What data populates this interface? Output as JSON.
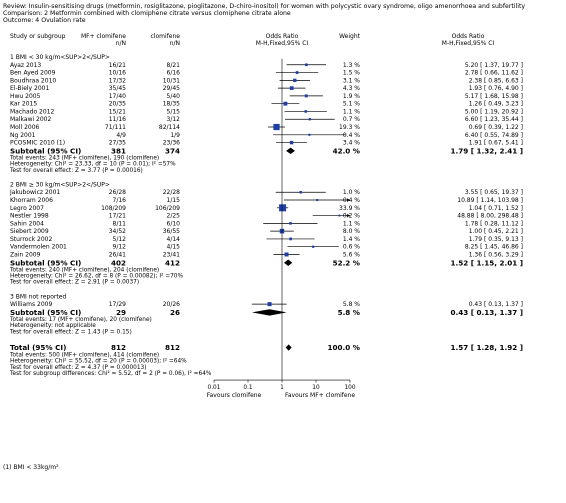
{
  "header": {
    "review": "Review:   Insulin-sensitising drugs (metformin, rosiglitazone, pioglitazone, D-chiro-inositol) for women with polycystic ovary syndrome, oligo amenorrhoea and subfertility",
    "comparison": "Comparison:   2 Metformin combined with clomiphene citrate versus clomiphene citrate alone",
    "outcome": "Outcome:   4 Ovulation rate"
  },
  "columns": {
    "study": "Study or subgroup",
    "exp": "MF+ clomifene",
    "ctrl": "clomifene",
    "n_n": "n/N",
    "or": "Odds Ratio",
    "or_method": "M-H,Fixed,95% CI",
    "weight": "Weight",
    "or2": "Odds Ratio",
    "or2_method": "M-H,Fixed,95% CI"
  },
  "chart_data": {
    "type": "forest",
    "scale": "log",
    "axis_ticks": [
      0.01,
      0.1,
      1,
      10,
      100
    ],
    "axis_tick_labels": [
      "0.01",
      "0.1",
      "1",
      "10",
      "100"
    ],
    "favours_left": "Favours clomifene",
    "favours_right": "Favours MF+ clomifene",
    "subgroups": [
      {
        "title": "1 BMI < 30 kg/m<SUP>2</SUP>",
        "studies": [
          {
            "name": "Ayaz 2013",
            "exp": "16/21",
            "ctrl": "8/21",
            "weight": "1.3 %",
            "ci_text": "5.20 [ 1.37, 19.77 ]",
            "or": 5.2,
            "lo": 1.37,
            "hi": 19.77
          },
          {
            "name": "Ben Ayed 2009",
            "exp": "10/16",
            "ctrl": "6/16",
            "weight": "1.5 %",
            "ci_text": "2.78 [ 0.66, 11.62 ]",
            "or": 2.78,
            "lo": 0.66,
            "hi": 11.62
          },
          {
            "name": "Boudhraa 2010",
            "exp": "17/32",
            "ctrl": "10/31",
            "weight": "3.1 %",
            "ci_text": "2.38 [ 0.85, 6.63 ]",
            "or": 2.38,
            "lo": 0.85,
            "hi": 6.63
          },
          {
            "name": "El-Biely 2001",
            "exp": "35/45",
            "ctrl": "29/45",
            "weight": "4.3 %",
            "ci_text": "1.93 [ 0.76, 4.90 ]",
            "or": 1.93,
            "lo": 0.76,
            "hi": 4.9
          },
          {
            "name": "Hwu 2005",
            "exp": "17/40",
            "ctrl": "5/40",
            "weight": "1.9 %",
            "ci_text": "5.17 [ 1.68, 15.98 ]",
            "or": 5.17,
            "lo": 1.68,
            "hi": 15.98
          },
          {
            "name": "Kar 2015",
            "exp": "20/35",
            "ctrl": "18/35",
            "weight": "5.1 %",
            "ci_text": "1.26 [ 0.49, 3.23 ]",
            "or": 1.26,
            "lo": 0.49,
            "hi": 3.23
          },
          {
            "name": "Machado 2012",
            "exp": "15/21",
            "ctrl": "5/15",
            "weight": "1.1 %",
            "ci_text": "5.00 [ 1.19, 20.92 ]",
            "or": 5.0,
            "lo": 1.19,
            "hi": 20.92
          },
          {
            "name": "Malkawi 2002",
            "exp": "11/16",
            "ctrl": "3/12",
            "weight": "0.7 %",
            "ci_text": "6.60 [ 1.23, 35.44 ]",
            "or": 6.6,
            "lo": 1.23,
            "hi": 35.44
          },
          {
            "name": "Moll 2006",
            "exp": "71/111",
            "ctrl": "82/114",
            "weight": "19.3 %",
            "ci_text": "0.69 [ 0.39, 1.22 ]",
            "or": 0.69,
            "lo": 0.39,
            "hi": 1.22
          },
          {
            "name": "Ng 2001",
            "exp": "4/9",
            "ctrl": "1/9",
            "weight": "0.4 %",
            "ci_text": "6.40 [ 0.55, 74.89 ]",
            "or": 6.4,
            "lo": 0.55,
            "hi": 74.89
          },
          {
            "name": "PCOSMIC 2010 (1)",
            "exp": "27/35",
            "ctrl": "23/36",
            "weight": "3.4 %",
            "ci_text": "1.91 [ 0.67, 5.41 ]",
            "or": 1.91,
            "lo": 0.67,
            "hi": 5.41
          }
        ],
        "subtotal": {
          "label": "Subtotal (95% CI)",
          "exp": "381",
          "ctrl": "374",
          "weight": "42.0 %",
          "ci_text": "1.79 [ 1.32, 2.41 ]",
          "or": 1.79,
          "lo": 1.32,
          "hi": 2.41
        },
        "stats": [
          "Total events: 243 (MF+ clomifene), 190 (clomifene)",
          "Heterogeneity: Chi² = 23.33, df = 10 (P = 0.01); I² =57%",
          "Test for overall effect: Z = 3.77 (P = 0.00016)"
        ]
      },
      {
        "title": "2 BMI ≥ 30 kg/m<SUP>2</SUP>",
        "studies": [
          {
            "name": "Jakubowicz 2001",
            "exp": "26/28",
            "ctrl": "22/28",
            "weight": "1.0 %",
            "ci_text": "3.55 [ 0.65, 19.37 ]",
            "or": 3.55,
            "lo": 0.65,
            "hi": 19.37
          },
          {
            "name": "Khorram 2006",
            "exp": "7/16",
            "ctrl": "1/15",
            "weight": "0.4 %",
            "ci_text": "10.89 [ 1.14, 103.98 ]",
            "or": 10.89,
            "lo": 1.14,
            "hi": 103.98
          },
          {
            "name": "Legro 2007",
            "exp": "108/209",
            "ctrl": "106/209",
            "weight": "33.9 %",
            "ci_text": "1.04 [ 0.71, 1.52 ]",
            "or": 1.04,
            "lo": 0.71,
            "hi": 1.52
          },
          {
            "name": "Nestler 1998",
            "exp": "17/21",
            "ctrl": "2/25",
            "weight": "0.2 %",
            "ci_text": "48.88 [ 8.00, 298.48 ]",
            "or": 48.88,
            "lo": 8.0,
            "hi": 298.48
          },
          {
            "name": "Sahin 2004",
            "exp": "8/11",
            "ctrl": "6/10",
            "weight": "1.1 %",
            "ci_text": "1.78 [ 0.28, 11.12 ]",
            "or": 1.78,
            "lo": 0.28,
            "hi": 11.12
          },
          {
            "name": "Siebert 2009",
            "exp": "34/52",
            "ctrl": "36/55",
            "weight": "8.0 %",
            "ci_text": "1.00 [ 0.45, 2.21 ]",
            "or": 1.0,
            "lo": 0.45,
            "hi": 2.21
          },
          {
            "name": "Sturrock 2002",
            "exp": "5/12",
            "ctrl": "4/14",
            "weight": "1.4 %",
            "ci_text": "1.79 [ 0.35, 9.13 ]",
            "or": 1.79,
            "lo": 0.35,
            "hi": 9.13
          },
          {
            "name": "Vandermolen 2001",
            "exp": "9/12",
            "ctrl": "4/15",
            "weight": "0.6 %",
            "ci_text": "8.25 [ 1.45, 46.86 ]",
            "or": 8.25,
            "lo": 1.45,
            "hi": 46.86
          },
          {
            "name": "Zain 2009",
            "exp": "26/41",
            "ctrl": "23/41",
            "weight": "5.6 %",
            "ci_text": "1.36 [ 0.56, 3.29 ]",
            "or": 1.36,
            "lo": 0.56,
            "hi": 3.29
          }
        ],
        "subtotal": {
          "label": "Subtotal (95% CI)",
          "exp": "402",
          "ctrl": "412",
          "weight": "52.2 %",
          "ci_text": "1.52 [ 1.15, 2.01 ]",
          "or": 1.52,
          "lo": 1.15,
          "hi": 2.01
        },
        "stats": [
          "Total events: 240 (MF+ clomifene), 204 (clomifene)",
          "Heterogeneity: Chi² = 26.62, df = 8 (P = 0.00082); I² =70%",
          "Test for overall effect: Z = 2.91 (P = 0.0037)"
        ]
      },
      {
        "title": "3 BMI not reported",
        "studies": [
          {
            "name": "Williams 2009",
            "exp": "17/29",
            "ctrl": "20/26",
            "weight": "5.8 %",
            "ci_text": "0.43 [ 0.13, 1.37 ]",
            "or": 0.43,
            "lo": 0.13,
            "hi": 1.37
          }
        ],
        "subtotal": {
          "label": "Subtotal (95% CI)",
          "exp": "29",
          "ctrl": "26",
          "weight": "5.8 %",
          "ci_text": "0.43 [ 0.13, 1.37 ]",
          "or": 0.43,
          "lo": 0.13,
          "hi": 1.37
        },
        "stats": [
          "Total events: 17 (MF+ clomifene), 20 (clomifene)",
          "Heterogeneity: not applicable",
          "Test for overall effect: Z = 1.43 (P = 0.15)"
        ]
      }
    ],
    "total": {
      "label": "Total (95% CI)",
      "exp": "812",
      "ctrl": "812",
      "weight": "100.0 %",
      "ci_text": "1.57 [ 1.28, 1.92 ]",
      "or": 1.57,
      "lo": 1.28,
      "hi": 1.92
    },
    "total_stats": [
      "Total events: 500 (MF+ clomifene), 414 (clomifene)",
      "Heterogeneity: Chi² = 55.52, df = 20 (P = 0.00003); I² =64%",
      "Test for overall effect: Z = 4.37 (P = 0.000013)",
      "Test for subgroup differences: Chi² = 5.52, df = 2 (P = 0.06), I² =64%"
    ],
    "footnote": "(1) BMI < 33kg/m²"
  },
  "colors": {
    "marker": "#1f3fa8",
    "text": "#000000",
    "line": "#000000"
  }
}
